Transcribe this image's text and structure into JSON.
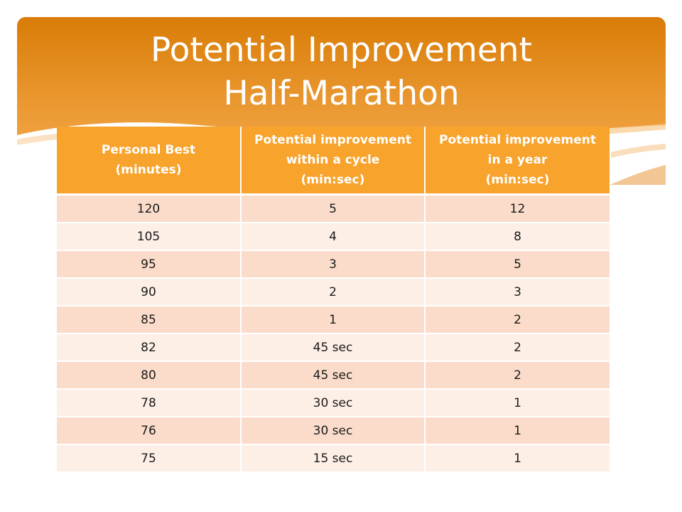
{
  "slide": {
    "title_line1": "Potential Improvement",
    "title_line2": "Half-Marathon"
  },
  "colors": {
    "banner_top": "#d97c07",
    "banner_bottom": "#f5ae56",
    "header_fill": "#f7a32c",
    "row_dark": "#fbdcca",
    "row_light": "#fdefe6"
  },
  "table": {
    "headers": [
      {
        "lines": [
          "Personal Best",
          "(minutes)"
        ]
      },
      {
        "lines": [
          "Potential improvement",
          "within a cycle",
          "(min:sec)"
        ]
      },
      {
        "lines": [
          "Potential improvement",
          "in a year",
          "(min:sec)"
        ]
      }
    ],
    "rows": [
      [
        "120",
        "5",
        "12"
      ],
      [
        "105",
        "4",
        "8"
      ],
      [
        "95",
        "3",
        "5"
      ],
      [
        "90",
        "2",
        "3"
      ],
      [
        "85",
        "1",
        "2"
      ],
      [
        "82",
        "45 sec",
        "2"
      ],
      [
        "80",
        "45 sec",
        "2"
      ],
      [
        "78",
        "30 sec",
        "1"
      ],
      [
        "76",
        "30 sec",
        "1"
      ],
      [
        "75",
        "15 sec",
        "1"
      ]
    ]
  }
}
